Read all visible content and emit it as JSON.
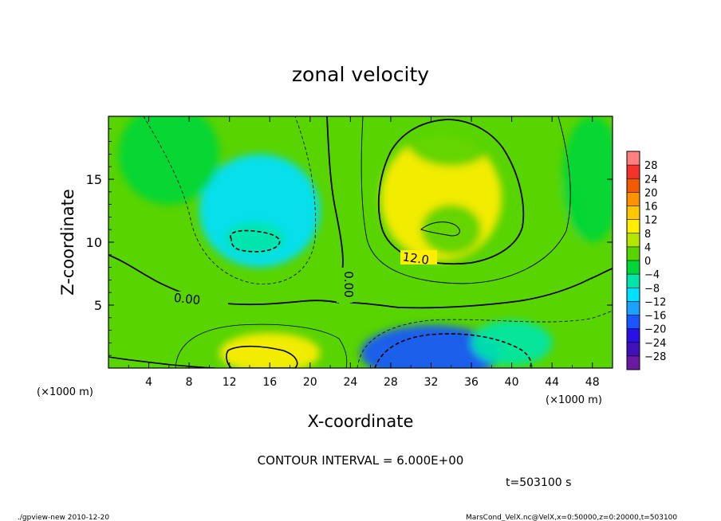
{
  "chart_data": {
    "type": "heatmap",
    "title": "zonal velocity",
    "xlabel": "X-coordinate",
    "ylabel": "Z-coordinate",
    "x_unit_label": "(×1000 m)",
    "z_unit_label": "(×1000 m)",
    "xlim": [
      0,
      50
    ],
    "ylim": [
      0,
      20
    ],
    "x_ticks": [
      "4",
      "8",
      "12",
      "16",
      "20",
      "24",
      "28",
      "32",
      "36",
      "40",
      "44",
      "48"
    ],
    "y_ticks": [
      "5",
      "10",
      "15"
    ],
    "colorbar_labels": [
      "28",
      "24",
      "20",
      "16",
      "12",
      "8",
      "4",
      "0",
      "−4",
      "−8",
      "−12",
      "−16",
      "−20",
      "−24",
      "−28"
    ],
    "colorbar_colors": [
      "#ff7f7f",
      "#f4342a",
      "#f45a00",
      "#ff9200",
      "#ffc800",
      "#ffee00",
      "#b4e600",
      "#58d400",
      "#00d638",
      "#00e6a8",
      "#00e0ff",
      "#19a2ff",
      "#1a55ff",
      "#2a10e8",
      "#4010b8",
      "#6a1aa0"
    ],
    "contour_interval_text": "CONTOUR INTERVAL = 6.000E+00",
    "contour_labels": [
      "0.00",
      "0.00",
      "12.0"
    ],
    "time_text": "t=503100 s",
    "footer_left": "./gpview-new   2010-12-20",
    "footer_right": "MarsCond_VelX.nc@VelX,x=0:50000,z=0:20000,t=503100",
    "features": [
      {
        "x": 33,
        "z": 13.5,
        "value": 14,
        "sx": 6,
        "sz": 5
      },
      {
        "x": 34,
        "z": 11,
        "value": 5,
        "sx": 3,
        "sz": 2
      },
      {
        "x": 34,
        "z": 19,
        "value": 3,
        "sx": 5,
        "sz": 3
      },
      {
        "x": 15,
        "z": 12.5,
        "value": -9,
        "sx": 6,
        "sz": 4.5
      },
      {
        "x": 14.5,
        "z": 10.3,
        "value": -4,
        "sx": 3,
        "sz": 1.3
      },
      {
        "x": 16,
        "z": 1.2,
        "value": 13,
        "sx": 5,
        "sz": 1.6
      },
      {
        "x": 32,
        "z": 1.2,
        "value": -16,
        "sx": 7,
        "sz": 2.2
      },
      {
        "x": 40,
        "z": 2,
        "value": -5,
        "sx": 4,
        "sz": 1.8
      },
      {
        "x": 4,
        "z": 6.5,
        "value": 6,
        "sx": 4,
        "sz": 1.4
      },
      {
        "x": 44,
        "z": 11,
        "value": 3,
        "sx": 3,
        "sz": 4
      },
      {
        "x": 48,
        "z": 15,
        "value": 2,
        "sx": 3,
        "sz": 5
      },
      {
        "x": 6,
        "z": 17,
        "value": 1,
        "sx": 5,
        "sz": 4
      }
    ]
  }
}
